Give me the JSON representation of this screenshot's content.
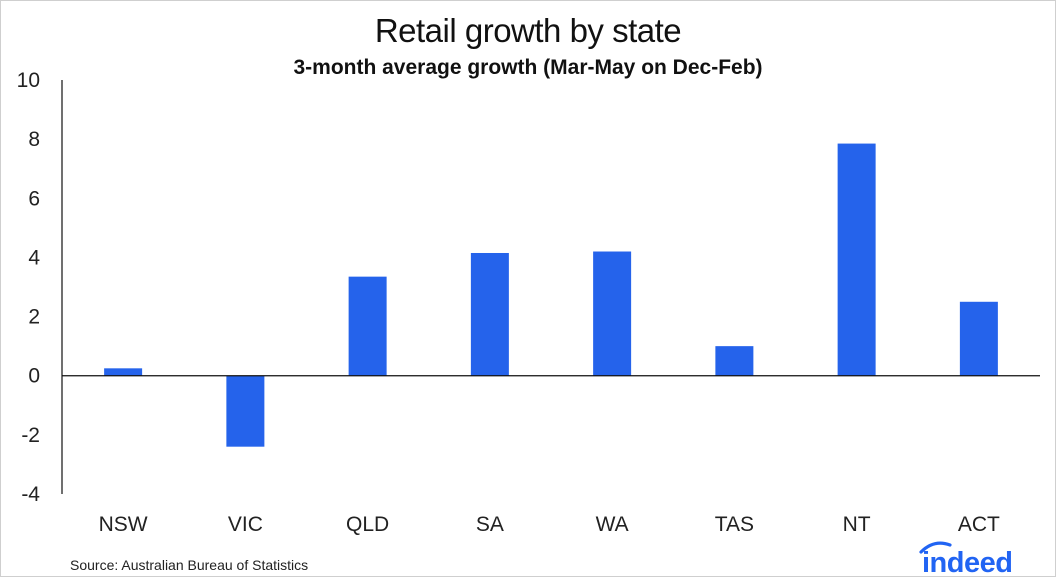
{
  "chart_data": {
    "type": "bar",
    "title": "Retail growth by state",
    "subtitle": "3-month average growth (Mar-May on Dec-Feb)",
    "xlabel": "",
    "ylabel": "",
    "categories": [
      "NSW",
      "VIC",
      "QLD",
      "SA",
      "WA",
      "TAS",
      "NT",
      "ACT"
    ],
    "values": [
      0.25,
      -2.4,
      3.35,
      4.15,
      4.2,
      1.0,
      7.85,
      2.5
    ],
    "ylim": [
      -4,
      10
    ],
    "yticks": [
      "-4",
      "-2",
      "0",
      "2",
      "4",
      "6",
      "8",
      "10"
    ],
    "grid": false,
    "bar_color": "#2563eb"
  },
  "footer": {
    "source": "Source: Australian Bureau of Statistics",
    "logo_text": "indeed",
    "logo_color": "#2164f3"
  }
}
